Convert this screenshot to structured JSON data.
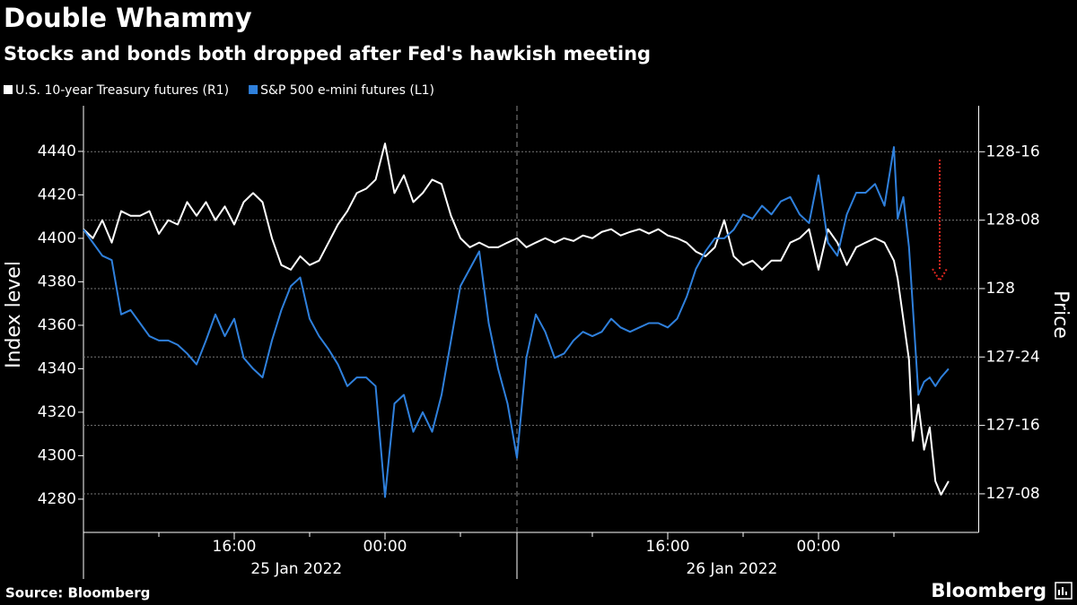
{
  "chart_data": {
    "type": "line",
    "title": "Double Whammy",
    "subtitle": "Stocks and bonds both dropped after Fed's hawkish meeting",
    "source": "Source: Bloomberg",
    "brand": "Bloomberg",
    "ylabel": "Index level",
    "y2label": "Price",
    "x": [
      0,
      0.5,
      1,
      1.5,
      2,
      2.5,
      3,
      3.5,
      4,
      4.5,
      5,
      5.5,
      6,
      6.5,
      7,
      7.5,
      8,
      8.5,
      9,
      9.5,
      10,
      10.5,
      11,
      11.5,
      12,
      12.5,
      13,
      13.5,
      14,
      14.5,
      15,
      15.5,
      16,
      16.5,
      17,
      17.5,
      18,
      18.5,
      19,
      19.5,
      20,
      20.5,
      21,
      21.5,
      22,
      22.5,
      23,
      23.5,
      24,
      24.5,
      25,
      25.5,
      26,
      26.5,
      27,
      27.5,
      28,
      28.5,
      29,
      29.5,
      30,
      30.5,
      31,
      31.5,
      32,
      32.5,
      33,
      33.5,
      34,
      34.5,
      35,
      35.5,
      36,
      36.5,
      37,
      37.5,
      38,
      38.5,
      39,
      39.5,
      40,
      40.5,
      41,
      41.5,
      42,
      42.5,
      43,
      43.2,
      43.5,
      43.8,
      44,
      44.3,
      44.6,
      44.9,
      45.2,
      45.5,
      45.9
    ],
    "xlim": [
      0,
      47.5
    ],
    "xticks": [
      {
        "value": 8,
        "label": "16:00"
      },
      {
        "value": 16,
        "label": "00:00"
      },
      {
        "value": 31,
        "label": "16:00"
      },
      {
        "value": 39,
        "label": "00:00"
      }
    ],
    "xminor_ticks": [
      0,
      4,
      12,
      20,
      27,
      35,
      43
    ],
    "dates": [
      {
        "value": 11.3,
        "label": "25 Jan 2022"
      },
      {
        "value": 34.4,
        "label": "26 Jan 2022"
      }
    ],
    "day_divider": 23,
    "ylim": [
      4264.7,
      4461
    ],
    "yticks": [
      4280,
      4300,
      4320,
      4340,
      4360,
      4380,
      4400,
      4420,
      4440
    ],
    "y2lim": [
      127.109,
      128.668
    ],
    "y2ticks": [
      {
        "value": 127.25,
        "label": "127-08"
      },
      {
        "value": 127.5,
        "label": "127-16"
      },
      {
        "value": 127.75,
        "label": "127-24"
      },
      128,
      {
        "value": 128.25,
        "label": "128-08"
      },
      {
        "value": 128.5,
        "label": "128-16"
      }
    ],
    "grid": true,
    "series": [
      {
        "name": "U.S. 10-year Treasury futures (R1)",
        "color": "#ffffff",
        "axis": "y2",
        "values": [
          128.217,
          128.184,
          128.25,
          128.168,
          128.283,
          128.266,
          128.266,
          128.283,
          128.2,
          128.25,
          128.234,
          128.316,
          128.266,
          128.316,
          128.25,
          128.3,
          128.234,
          128.316,
          128.349,
          128.316,
          128.184,
          128.086,
          128.069,
          128.118,
          128.086,
          128.102,
          128.168,
          128.234,
          128.283,
          128.349,
          128.365,
          128.398,
          128.53,
          128.349,
          128.414,
          128.316,
          128.349,
          128.398,
          128.382,
          128.266,
          128.184,
          128.151,
          128.168,
          128.151,
          128.151,
          128.168,
          128.184,
          128.151,
          128.168,
          128.184,
          128.168,
          128.184,
          128.174,
          128.194,
          128.184,
          128.207,
          128.217,
          128.194,
          128.207,
          128.217,
          128.201,
          128.217,
          128.194,
          128.184,
          128.168,
          128.135,
          128.118,
          128.151,
          128.25,
          128.118,
          128.086,
          128.102,
          128.069,
          128.102,
          128.102,
          128.168,
          128.184,
          128.217,
          128.069,
          128.217,
          128.168,
          128.086,
          128.151,
          128.168,
          128.184,
          128.168,
          128.102,
          128.036,
          127.888,
          127.74,
          127.444,
          127.576,
          127.411,
          127.493,
          127.296,
          127.247,
          127.296
        ]
      },
      {
        "name": "S&P 500 e-mini futures (L1)",
        "color": "#2f80dc",
        "axis": "y",
        "values": [
          4404,
          4398,
          4392,
          4390,
          4365,
          4367,
          4361,
          4355,
          4353,
          4353,
          4351,
          4347,
          4342,
          4353,
          4365,
          4355,
          4363,
          4345,
          4340,
          4336,
          4353,
          4367,
          4378,
          4382,
          4363,
          4355,
          4349,
          4342,
          4332,
          4336,
          4336,
          4332,
          4281,
          4324,
          4328,
          4311,
          4320,
          4311,
          4328,
          4353,
          4378,
          4386,
          4394,
          4361,
          4340,
          4324,
          4299,
          4345,
          4365,
          4357,
          4345,
          4347,
          4353,
          4357,
          4355,
          4357,
          4363,
          4359,
          4357,
          4359,
          4361,
          4361,
          4359,
          4363,
          4373,
          4386,
          4394,
          4400,
          4400,
          4404,
          4411,
          4409,
          4415,
          4411,
          4417,
          4419,
          4411,
          4407,
          4429,
          4398,
          4392,
          4411,
          4421,
          4421,
          4425,
          4415,
          4442,
          4409,
          4419,
          4396,
          4369,
          4328,
          4334,
          4336,
          4332,
          4336,
          4340
        ]
      }
    ]
  }
}
